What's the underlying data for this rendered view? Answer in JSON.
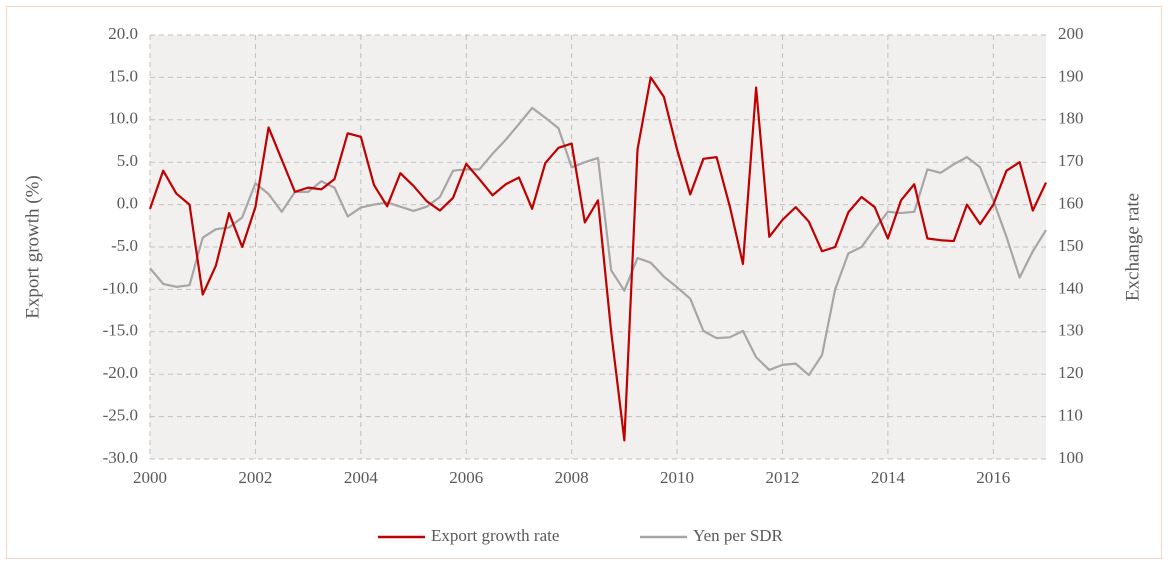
{
  "chart_data": {
    "type": "line",
    "y_label": "Export growth (%)",
    "y2_label": "Exchange rate",
    "x": [
      2000,
      2000.25,
      2000.5,
      2000.75,
      2001,
      2001.25,
      2001.5,
      2001.75,
      2002,
      2002.25,
      2002.5,
      2002.75,
      2003,
      2003.25,
      2003.5,
      2003.75,
      2004,
      2004.25,
      2004.5,
      2004.75,
      2005,
      2005.25,
      2005.5,
      2005.75,
      2006,
      2006.25,
      2006.5,
      2006.75,
      2007,
      2007.25,
      2007.5,
      2007.75,
      2008,
      2008.25,
      2008.5,
      2008.75,
      2009,
      2009.25,
      2009.5,
      2009.75,
      2010,
      2010.25,
      2010.5,
      2010.75,
      2011,
      2011.25,
      2011.5,
      2011.75,
      2012,
      2012.25,
      2012.5,
      2012.75,
      2013,
      2013.25,
      2013.5,
      2013.75,
      2014,
      2014.25,
      2014.5,
      2014.75,
      2015,
      2015.25,
      2015.5,
      2015.75,
      2016,
      2016.25,
      2016.5,
      2016.75,
      2017
    ],
    "series": [
      {
        "name": "Export growth rate",
        "color": "#c00000",
        "values": [
          -0.5,
          4.0,
          1.3,
          0.0,
          -10.6,
          -7.2,
          -1.0,
          -5.0,
          -0.3,
          9.1,
          5.3,
          1.5,
          2.0,
          1.8,
          3.0,
          8.4,
          8.0,
          2.3,
          -0.2,
          3.7,
          2.2,
          0.4,
          -0.7,
          0.8,
          4.8,
          3.0,
          1.1,
          2.4,
          3.2,
          -0.5,
          4.9,
          6.7,
          7.2,
          -2.1,
          0.5,
          -15.0,
          -27.8,
          6.5,
          15.0,
          12.7,
          6.5,
          1.2,
          5.4,
          5.6,
          -0.2,
          -7.0,
          13.8,
          -3.8,
          -1.8,
          -0.3,
          -2.0,
          -5.5,
          -5.0,
          -0.9,
          0.9,
          -0.3,
          -4.0,
          0.5,
          2.4,
          -4.0,
          -4.2,
          -4.3,
          0.0,
          -2.3,
          0.0,
          4.0,
          5.0,
          -0.7,
          2.6
        ]
      },
      {
        "name": "Yen per SDR",
        "color": "#a6a6a6",
        "axis": "y2",
        "values": [
          145,
          141.3,
          140.6,
          141,
          152.2,
          154.2,
          154.6,
          157,
          165,
          162.5,
          158.3,
          163,
          163,
          165.5,
          164,
          157.2,
          159.3,
          160,
          160.5,
          159.5,
          158.5,
          159.5,
          161.8,
          168,
          168.3,
          168.3,
          172,
          175.3,
          179,
          182.8,
          180.5,
          178,
          168.8,
          170,
          171,
          144.5,
          139.7,
          147.4,
          146.3,
          143,
          140.5,
          137.8,
          130.2,
          128.5,
          128.7,
          130.2,
          124,
          121,
          122.2,
          122.5,
          119.8,
          124.5,
          140,
          148.5,
          150,
          154.3,
          158.3,
          158,
          158.3,
          168.3,
          167.5,
          169.5,
          171.2,
          168.8,
          161,
          152.4,
          142.8,
          149,
          154
        ]
      }
    ],
    "xlim": [
      2000,
      2017
    ],
    "xticks": [
      2000,
      2002,
      2004,
      2006,
      2008,
      2010,
      2012,
      2014,
      2016
    ],
    "ylim": [
      -30,
      20
    ],
    "yticks": [
      {
        "value": -30,
        "label": "-30.0"
      },
      {
        "value": -25,
        "label": "-25.0"
      },
      {
        "value": -20,
        "label": "-20.0"
      },
      {
        "value": -15,
        "label": "-15.0"
      },
      {
        "value": -10,
        "label": "-10.0"
      },
      {
        "value": -5,
        "label": "-5.0"
      },
      {
        "value": 0,
        "label": "0.0"
      },
      {
        "value": 5,
        "label": "5.0"
      },
      {
        "value": 10,
        "label": "10.0"
      },
      {
        "value": 15,
        "label": "15.0"
      },
      {
        "value": 20,
        "label": "20.0"
      }
    ],
    "y2lim": [
      100,
      200
    ],
    "y2ticks": [
      100,
      110,
      120,
      130,
      140,
      150,
      160,
      170,
      180,
      190,
      200
    ],
    "grid": true,
    "legend": "bottom"
  }
}
